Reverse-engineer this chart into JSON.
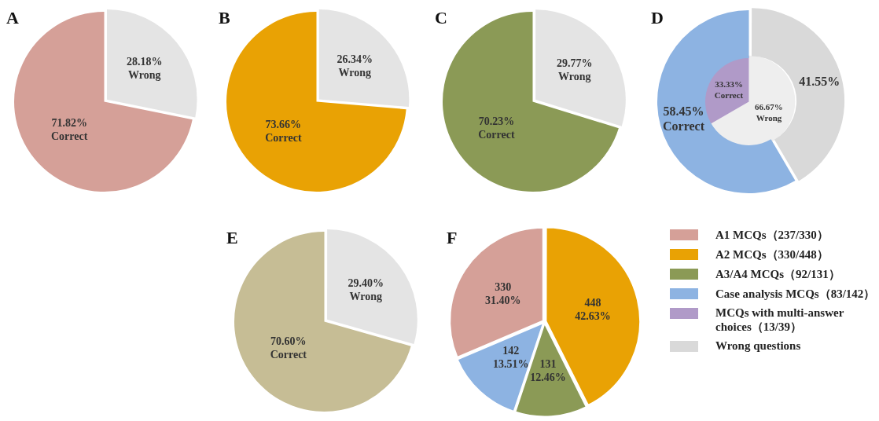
{
  "chart_data": [
    {
      "type": "pie",
      "title": "A",
      "categories": [
        "Wrong",
        "Correct"
      ],
      "values": [
        28.18,
        71.82
      ],
      "colors": [
        "#e4e4e4",
        "#d5a098"
      ],
      "value_labels": [
        "28.18%",
        "71.82%"
      ]
    },
    {
      "type": "pie",
      "title": "B",
      "categories": [
        "Wrong",
        "Correct"
      ],
      "values": [
        26.34,
        73.66
      ],
      "colors": [
        "#e4e4e4",
        "#e9a204"
      ],
      "value_labels": [
        "26.34%",
        "73.66%"
      ]
    },
    {
      "type": "pie",
      "title": "C",
      "categories": [
        "Wrong",
        "Correct"
      ],
      "values": [
        29.77,
        70.23
      ],
      "colors": [
        "#e4e4e4",
        "#8b9a56"
      ],
      "value_labels": [
        "29.77%",
        "70.23%"
      ]
    },
    {
      "type": "pie",
      "title": "D",
      "categories": [
        "Wrong",
        "Correct"
      ],
      "annotations": [
        {
          "text": "41.55%",
          "x": "Wrong"
        }
      ],
      "series": [
        {
          "colors": [
            "#d9d9d9",
            "#8db3e2"
          ],
          "values": [
            41.55,
            58.45
          ],
          "value_labels": [
            null,
            "58.45%"
          ]
        },
        {
          "colors": [
            "#eeeeee",
            "#b09ac8"
          ],
          "values": [
            66.67,
            33.33
          ],
          "value_labels": [
            "66.67%",
            "33.33%"
          ]
        }
      ]
    },
    {
      "type": "pie",
      "title": "E",
      "categories": [
        "Wrong",
        "Correct"
      ],
      "values": [
        29.4,
        70.6
      ],
      "colors": [
        "#e4e4e4",
        "#c6bd95"
      ],
      "value_labels": [
        "29.40%",
        "70.60%"
      ]
    },
    {
      "type": "pie",
      "title": "F",
      "categories": [
        null,
        null,
        null,
        null
      ],
      "values": [
        448,
        131,
        142,
        330
      ],
      "colors": [
        "#e9a204",
        "#8b9a56",
        "#8db3e2",
        "#d5a098"
      ],
      "value_labels": [
        "448\n42.63%",
        "131\n12.46%",
        "142\n13.51%",
        "330\n31.40%"
      ]
    },
    {
      "type": "other",
      "annotations": [
        "A1 MCQs（237/330）",
        "A2 MCQs（330/448）",
        "A3/A4 MCQs（92/131）",
        "Case analysis MCQs（83/142）",
        "MCQs with multi-answer choices（13/39）",
        "Wrong questions"
      ],
      "colors": [
        "#d5a098",
        "#e9a204",
        "#8b9a56",
        "#8db3e2",
        "#b09ac8",
        "#d9d9d9"
      ]
    }
  ]
}
